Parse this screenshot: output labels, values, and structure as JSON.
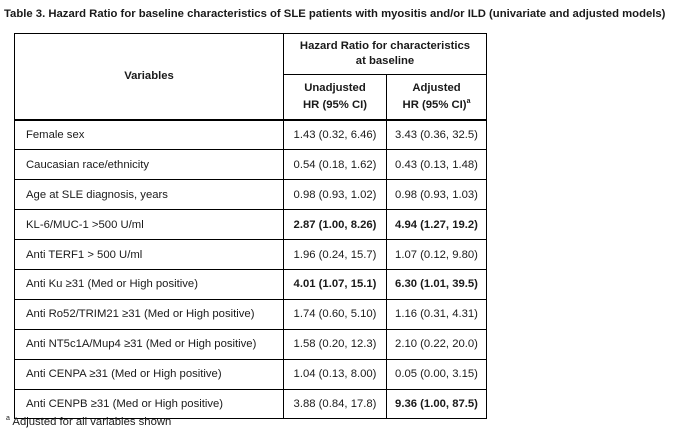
{
  "title": "Table 3. Hazard Ratio for baseline characteristics of SLE patients with myositis and/or ILD  (univariate and adjusted models)",
  "table": {
    "variables_header": "Variables",
    "group_header": "Hazard Ratio for characteristics at baseline",
    "col_unadjusted_line1": "Unadjusted",
    "col_unadjusted_line2": "HR (95% CI)",
    "col_adjusted_line1": "Adjusted",
    "col_adjusted_line2": "HR (95% CI)",
    "col_adjusted_sup": "a",
    "rows": [
      {
        "variable": "Female sex",
        "unadjusted": "1.43 (0.32, 6.46)",
        "adjusted": "3.43 (0.36, 32.5)"
      },
      {
        "variable": "Caucasian race/ethnicity",
        "unadjusted": "0.54 (0.18, 1.62)",
        "adjusted": "0.43 (0.13, 1.48)"
      },
      {
        "variable": "Age at SLE diagnosis, years",
        "unadjusted": "0.98 (0.93, 1.02)",
        "adjusted": "0.98 (0.93, 1.03)"
      },
      {
        "variable": "KL-6/MUC-1 >500 U/ml",
        "unadjusted": "2.87 (1.00, 8.26)",
        "adjusted": "4.94 (1.27, 19.2)"
      },
      {
        "variable": "Anti TERF1 > 500 U/ml",
        "unadjusted": "1.96 (0.24, 15.7)",
        "adjusted": "1.07 (0.12, 9.80)"
      },
      {
        "variable": "Anti Ku ≥31 (Med or High positive)",
        "unadjusted": "4.01 (1.07, 15.1)",
        "adjusted": "6.30 (1.01, 39.5)"
      },
      {
        "variable": "Anti Ro52/TRIM21 ≥31 (Med or High positive)",
        "unadjusted": "1.74 (0.60, 5.10)",
        "adjusted": "1.16 (0.31, 4.31)"
      },
      {
        "variable": "Anti NT5c1A/Mup4 ≥31 (Med or High positive)",
        "unadjusted": "1.58 (0.20, 12.3)",
        "adjusted": "2.10 (0.22, 20.0)"
      },
      {
        "variable": "Anti CENPA ≥31 (Med or High positive)",
        "unadjusted": "1.04 (0.13, 8.00)",
        "adjusted": "0.05 (0.00, 3.15)"
      },
      {
        "variable": "Anti CENPB ≥31 (Med or High positive)",
        "unadjusted": "3.88 (0.84, 17.8)",
        "adjusted": "9.36 (1.00, 87.5)"
      }
    ]
  },
  "footnote_marker": "a",
  "footnote_text": " Adjusted for all variables shown"
}
